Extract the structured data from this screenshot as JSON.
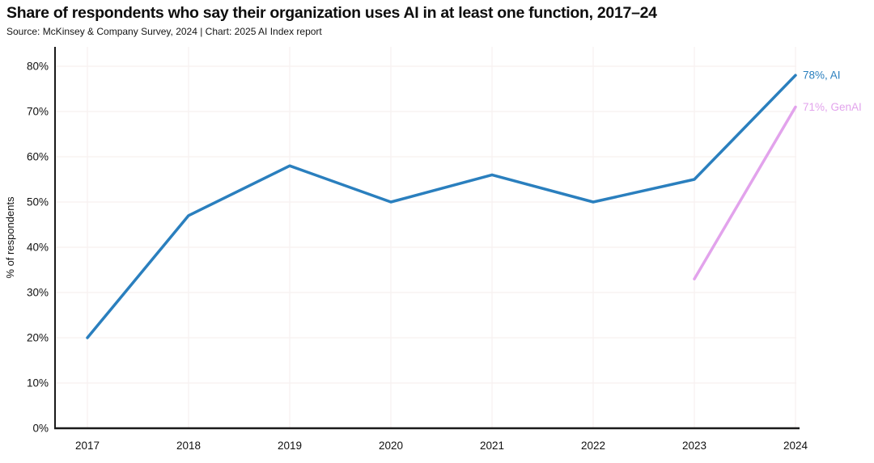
{
  "header": {
    "title": "Share of respondents who say their organization uses AI in at least one function, 2017–24",
    "source": "Source: McKinsey & Company Survey, 2024 | Chart: 2025 AI Index report"
  },
  "chart_data": {
    "type": "line",
    "title": "Share of respondents who say their organization uses AI in at least one function, 2017–24",
    "subtitle": "Source: McKinsey & Company Survey, 2024 | Chart: 2025 AI Index report",
    "x": [
      "2017",
      "2018",
      "2019",
      "2020",
      "2021",
      "2022",
      "2023",
      "2024"
    ],
    "series": [
      {
        "name": "AI",
        "color": "#2A7FBE",
        "values": [
          20,
          47,
          58,
          50,
          56,
          50,
          55,
          78
        ],
        "end_label": "78%, AI"
      },
      {
        "name": "GenAI",
        "color": "#E2A3EC",
        "values": [
          null,
          null,
          null,
          null,
          null,
          null,
          33,
          71
        ],
        "end_label": "71%, GenAI"
      }
    ],
    "ylabel": "% of respondents",
    "xlabel": "",
    "ylim": [
      0,
      80
    ],
    "ytick_step": 10,
    "ytick_suffix": "%",
    "grid": true,
    "legend_position": "end-of-line labels",
    "colors": {
      "axis": "#1a1a1a",
      "grid": "#f7f1ef",
      "text": "#111111",
      "background": "#ffffff"
    }
  }
}
